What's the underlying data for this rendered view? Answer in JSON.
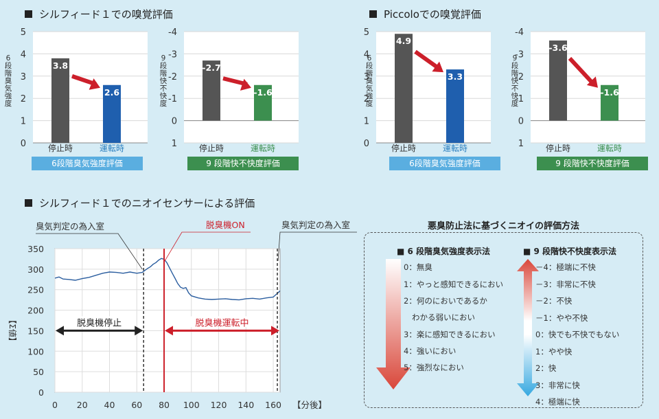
{
  "headings": {
    "sylphide_smell": "シルフィード１での嗅覚評価",
    "piccolo_smell": "Piccoloでの嗅覚評価",
    "sensor_eval": "シルフィード１でのニオイセンサーによる評価"
  },
  "colors": {
    "stopped": "#555555",
    "running_blue": "#1f5fae",
    "running_green": "#3c8f4f",
    "red": "#cc1f2a",
    "line": "#2a5d9f"
  },
  "chart_data": [
    {
      "type": "bar",
      "id": "sylphide_intensity",
      "categories": [
        "停止時",
        "運転時"
      ],
      "values": [
        3.8,
        2.6
      ],
      "data_labels": [
        "3.8",
        "2.6"
      ],
      "ylim": [
        0,
        5
      ],
      "yticks": [
        "5",
        "4",
        "3",
        "2",
        "1",
        "0"
      ],
      "ylabel": "6段階臭気強度",
      "footer": "6段階臭気強度評価"
    },
    {
      "type": "bar",
      "id": "sylphide_discomfort",
      "categories": [
        "停止時",
        "運転時"
      ],
      "values": [
        -2.7,
        -1.6
      ],
      "data_labels": [
        "-2.7",
        "-1.6"
      ],
      "ylim": [
        1,
        -4
      ],
      "yticks": [
        "-4",
        "-3",
        "-2",
        "-1",
        "0",
        "1"
      ],
      "ylabel": "9段階快不快度",
      "footer": "9 段階快不快度評価"
    },
    {
      "type": "bar",
      "id": "piccolo_intensity",
      "categories": [
        "停止時",
        "運転時"
      ],
      "values": [
        4.9,
        3.3
      ],
      "data_labels": [
        "4.9",
        "3.3"
      ],
      "ylim": [
        0,
        5
      ],
      "yticks": [
        "5",
        "4",
        "3",
        "2",
        "1",
        "0"
      ],
      "ylabel": "6段階臭気強度",
      "footer": "6段階臭気強度評価"
    },
    {
      "type": "bar",
      "id": "piccolo_discomfort",
      "categories": [
        "停止時",
        "運転時"
      ],
      "values": [
        -3.6,
        -1.6
      ],
      "data_labels": [
        "-3.6",
        "-1.6"
      ],
      "ylim": [
        1,
        -4
      ],
      "yticks": [
        "-4",
        "-3",
        "-2",
        "-1",
        "0",
        "1"
      ],
      "ylabel": "9段階快不快度",
      "footer": "9 段階快不快度評価"
    },
    {
      "type": "line",
      "id": "sensor",
      "xlabel": "【分後】",
      "ylabel": "【Σ値】",
      "xlim": [
        0,
        165
      ],
      "ylim": [
        0,
        350
      ],
      "xticks": [
        "0",
        "20",
        "40",
        "60",
        "80",
        "100",
        "120",
        "140",
        "160"
      ],
      "yticks": [
        "350",
        "300",
        "250",
        "200",
        "150",
        "100",
        "50",
        "0"
      ],
      "x": [
        0,
        3,
        6,
        10,
        15,
        20,
        25,
        30,
        35,
        40,
        45,
        50,
        55,
        60,
        64,
        66,
        68,
        70,
        72,
        74,
        76,
        78,
        80,
        82,
        84,
        86,
        88,
        90,
        92,
        94,
        96,
        98,
        100,
        105,
        110,
        115,
        120,
        125,
        130,
        135,
        140,
        145,
        150,
        155,
        160,
        162,
        164,
        166,
        168,
        170
      ],
      "values": [
        278,
        281,
        276,
        275,
        273,
        277,
        280,
        285,
        290,
        293,
        292,
        290,
        293,
        290,
        292,
        297,
        302,
        306,
        312,
        316,
        322,
        326,
        324,
        316,
        303,
        290,
        278,
        265,
        256,
        253,
        255,
        242,
        235,
        230,
        227,
        226,
        227,
        228,
        226,
        225,
        228,
        229,
        227,
        230,
        232,
        238,
        244,
        250,
        257,
        254
      ],
      "markers": [
        {
          "x": 65,
          "label": "臭気判定の為入室"
        },
        {
          "x": 80,
          "label": "脱臭機ON"
        },
        {
          "x": 163,
          "label": "臭気判定の為入室"
        }
      ],
      "spans": [
        {
          "label": "脱臭機停止"
        },
        {
          "label": "脱臭機運転中"
        }
      ]
    }
  ],
  "legend": {
    "title": "悪臭防止法に基づくニオイの評価方法",
    "intensity_head": "■ 6 段階臭気強度表示法",
    "intensity_items": [
      "0：無臭",
      "1：やっと感知できるにおい",
      "2：何のにおいであるか",
      "わかる弱いにおい",
      "3：楽に感知できるにおい",
      "4：強いにおい",
      "5：強烈なにおい"
    ],
    "comfort_head": "■ 9 段階快不快度表示法",
    "comfort_items": [
      "－4：極端に不快",
      "－3：非常に不快",
      "－2：不快",
      "－1：やや不快",
      "0：快でも不快でもない",
      "1：やや快",
      "2：快",
      "3：非常に快",
      "4：極端に快"
    ]
  }
}
